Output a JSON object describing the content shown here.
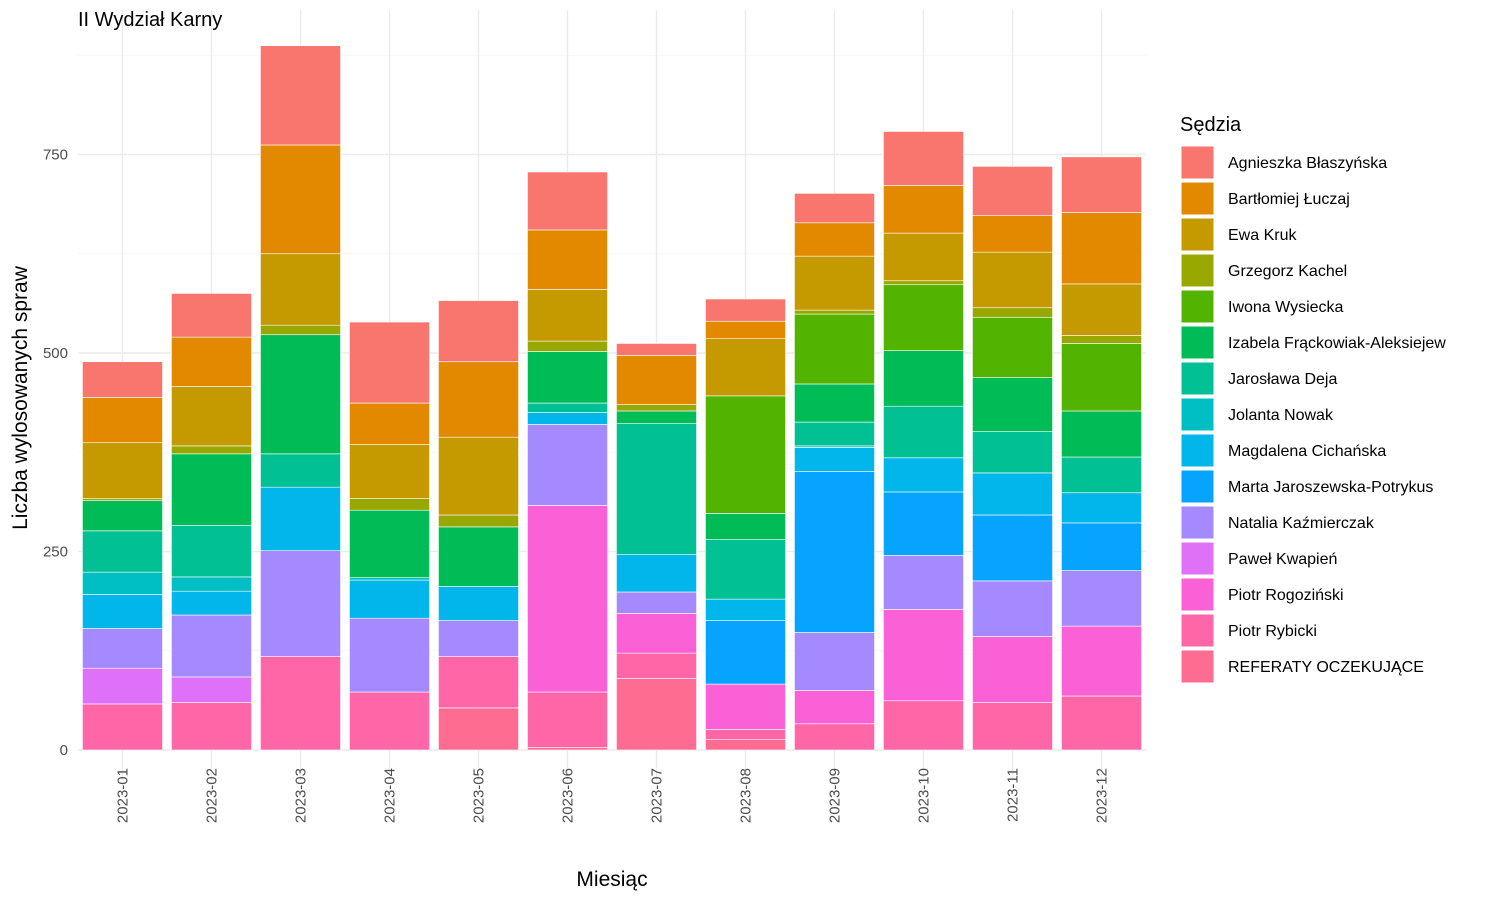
{
  "chart_data": {
    "type": "bar",
    "stacked": true,
    "title": "II Wydział Karny",
    "xlabel": "Miesiąc",
    "ylabel": "Liczba wylosowanych spraw",
    "ylim": [
      0,
      900
    ],
    "yticks": [
      0,
      250,
      500,
      750
    ],
    "grid": true,
    "legend_title": "Sędzia",
    "legend_position": "right",
    "categories": [
      "2023-01",
      "2023-02",
      "2023-03",
      "2023-04",
      "2023-05",
      "2023-06",
      "2023-07",
      "2023-08",
      "2023-09",
      "2023-10",
      "2023-11",
      "2023-12"
    ],
    "series": [
      {
        "name": "Agnieszka Błaszyńska",
        "color": "#F8766D",
        "values": [
          45,
          55,
          125,
          102,
          77,
          73,
          15,
          28,
          37,
          68,
          62,
          70
        ]
      },
      {
        "name": "Bartłomiej Łuczaj",
        "color": "#E38900",
        "values": [
          57,
          62,
          137,
          52,
          95,
          75,
          62,
          22,
          42,
          60,
          46,
          90
        ]
      },
      {
        "name": "Ewa Kruk",
        "color": "#C49A00",
        "values": [
          70,
          75,
          90,
          68,
          98,
          65,
          0,
          72,
          68,
          60,
          70,
          65
        ]
      },
      {
        "name": "Grzegorz Kachel",
        "color": "#99A800",
        "values": [
          3,
          10,
          12,
          15,
          15,
          13,
          8,
          0,
          5,
          5,
          12,
          10
        ]
      },
      {
        "name": "Iwona Wysiecka",
        "color": "#53B400",
        "values": [
          0,
          0,
          0,
          0,
          0,
          0,
          0,
          148,
          88,
          83,
          76,
          85
        ]
      },
      {
        "name": "Izabela Frąckowiak-Aleksiejew",
        "color": "#00BC56",
        "values": [
          38,
          90,
          150,
          85,
          75,
          65,
          16,
          33,
          48,
          70,
          68,
          58
        ]
      },
      {
        "name": "Jarosława Deja",
        "color": "#00C094",
        "values": [
          52,
          65,
          42,
          0,
          0,
          12,
          165,
          75,
          30,
          65,
          52,
          45
        ]
      },
      {
        "name": "Jolanta Nowak",
        "color": "#00BFC4",
        "values": [
          28,
          18,
          0,
          3,
          0,
          0,
          0,
          0,
          2,
          0,
          0,
          0
        ]
      },
      {
        "name": "Magdalena Cichańska",
        "color": "#00B6EB",
        "values": [
          43,
          30,
          80,
          48,
          43,
          15,
          47,
          27,
          30,
          43,
          53,
          38
        ]
      },
      {
        "name": "Marta Jaroszewska-Potrykus",
        "color": "#06A4FF",
        "values": [
          0,
          0,
          0,
          0,
          0,
          0,
          0,
          80,
          203,
          80,
          83,
          60
        ]
      },
      {
        "name": "Natalia Kaźmierczak",
        "color": "#A58AFF",
        "values": [
          50,
          78,
          133,
          93,
          45,
          102,
          27,
          0,
          73,
          68,
          70,
          70
        ]
      },
      {
        "name": "Paweł Kwapień",
        "color": "#DF70F8",
        "values": [
          45,
          32,
          0,
          0,
          0,
          0,
          0,
          0,
          0,
          0,
          0,
          0
        ]
      },
      {
        "name": "Piotr Rogoziński",
        "color": "#FB61D7",
        "values": [
          0,
          0,
          0,
          0,
          0,
          235,
          50,
          57,
          42,
          115,
          83,
          88
        ]
      },
      {
        "name": "Piotr Rybicki",
        "color": "#FF66A8",
        "values": [
          58,
          60,
          118,
          73,
          65,
          70,
          32,
          13,
          33,
          62,
          60,
          68
        ]
      },
      {
        "name": "REFERATY OCZEKUJĄCE",
        "color": "#FF6C91",
        "values": [
          0,
          0,
          0,
          0,
          53,
          3,
          90,
          13,
          0,
          0,
          0,
          0
        ]
      }
    ]
  }
}
